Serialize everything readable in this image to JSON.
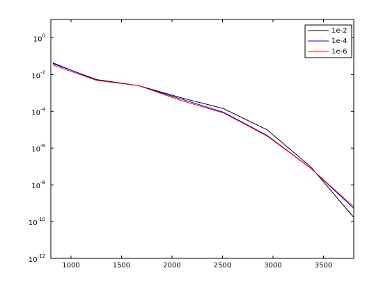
{
  "chart_data": {
    "type": "line",
    "log_y": true,
    "x": [
      820,
      1250,
      1670,
      2090,
      2510,
      2940,
      3370,
      3800
    ],
    "series": [
      {
        "name": "1e-2",
        "color": "#000000",
        "values": [
          0.04,
          0.0054,
          0.0025,
          0.00055,
          0.00014,
          1e-05,
          1e-07,
          1.7e-10
        ]
      },
      {
        "name": "1e-4",
        "color": "#0000ff",
        "values": [
          0.044,
          0.0049,
          0.0025,
          0.00047,
          8.9e-05,
          5e-06,
          8.3e-08,
          5.2e-10
        ]
      },
      {
        "name": "1e-6",
        "color": "#ff0000",
        "values": [
          0.033,
          0.0049,
          0.0025,
          0.00039,
          8.1e-05,
          4.6e-06,
          8.3e-08,
          6.3e-10
        ]
      }
    ],
    "xlim": [
      800,
      3800
    ],
    "xticks": [
      1000,
      1500,
      2000,
      2500,
      3000,
      3500
    ],
    "ylim": [
      1e-12,
      10
    ],
    "yticks": [
      {
        "value": 1,
        "label": "10",
        "exponent": "0"
      },
      {
        "value": 0.01,
        "label": "10",
        "exponent": "-2"
      },
      {
        "value": 0.0001,
        "label": "10",
        "exponent": "-4"
      },
      {
        "value": 1e-06,
        "label": "10",
        "exponent": "-6"
      },
      {
        "value": 1e-08,
        "label": "10",
        "exponent": "-8"
      },
      {
        "value": 1e-10,
        "label": "10",
        "exponent": "-10"
      },
      {
        "value": 1e-12,
        "label": "10",
        "exponent": "-12"
      }
    ],
    "legend": "top-right",
    "grid": false
  }
}
